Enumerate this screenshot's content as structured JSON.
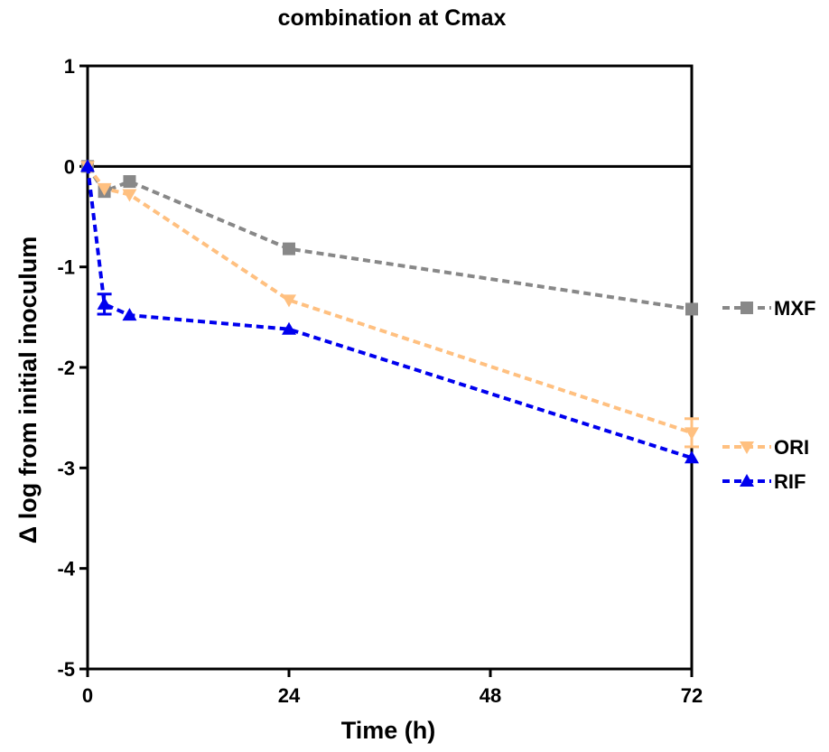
{
  "chart_data": {
    "type": "line",
    "title": "combination at Cmax",
    "xlabel": "Time (h)",
    "ylabel": "Δ log from initial inoculum",
    "xlim": [
      0,
      72
    ],
    "ylim": [
      -5,
      1
    ],
    "xticks": [
      0,
      24,
      48,
      72
    ],
    "yticks": [
      1,
      0,
      -1,
      -2,
      -3,
      -4,
      -5
    ],
    "xtick_labels": [
      "0",
      "24",
      "48",
      "72"
    ],
    "ytick_labels": [
      "1",
      "0",
      "-1",
      "-2",
      "-3",
      "-4",
      "-5"
    ],
    "reference_line_y": 0,
    "grid": false,
    "legend": "right",
    "series": [
      {
        "name": "MXF",
        "color": "#888888",
        "marker": "square",
        "x": [
          0,
          2,
          5,
          24,
          72
        ],
        "y": [
          0,
          -0.25,
          -0.15,
          -0.82,
          -1.42
        ],
        "error": [
          0,
          0,
          0,
          0,
          0
        ]
      },
      {
        "name": "ORI",
        "color": "#FFC080",
        "marker": "triangle-down",
        "x": [
          0,
          2,
          5,
          24,
          72
        ],
        "y": [
          0,
          -0.22,
          -0.28,
          -1.33,
          -2.65
        ],
        "error": [
          0,
          0,
          0,
          0,
          0.14
        ]
      },
      {
        "name": "RIF",
        "color": "#0000EE",
        "marker": "triangle-up",
        "x": [
          0,
          2,
          5,
          24,
          72
        ],
        "y": [
          0,
          -1.37,
          -1.48,
          -1.62,
          -2.9
        ],
        "error": [
          0,
          0.1,
          0,
          0,
          0
        ]
      }
    ]
  }
}
